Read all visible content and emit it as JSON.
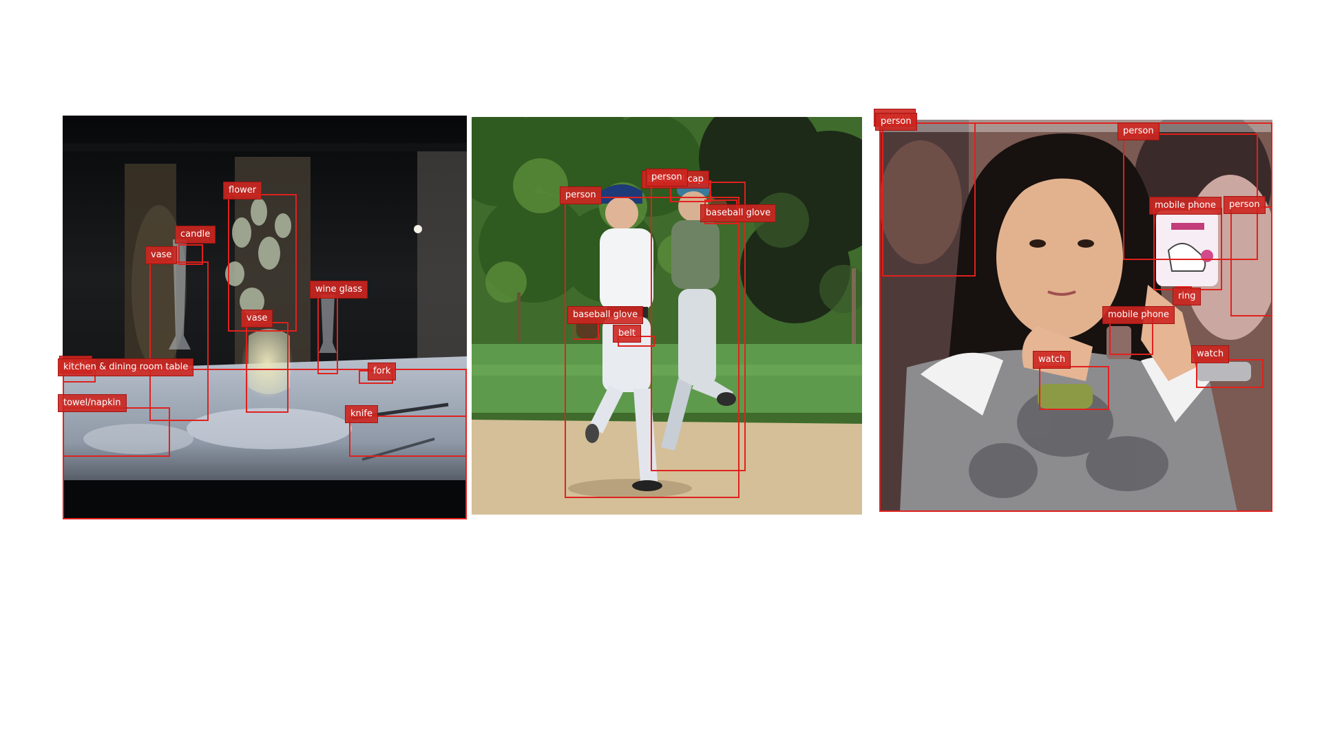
{
  "colors": {
    "box": "#e0211d",
    "tag_bg": "#cd2620",
    "tag_text": "#ffffff",
    "background": "#ffffff"
  },
  "panels": [
    {
      "scene": "restaurant-table",
      "labels": [
        "flower",
        "candle",
        "vase",
        "wine glass",
        "vase",
        "chair",
        "kitchen & dining room table",
        "fork",
        "towel/napkin",
        "knife"
      ]
    },
    {
      "scene": "baseball-field",
      "labels": [
        "person",
        "baseball cap",
        "person",
        "baseball glove",
        "baseball glove",
        "belt"
      ]
    },
    {
      "scene": "woman-with-phone",
      "labels": [
        "person",
        "person",
        "person",
        "mobile phone",
        "person",
        "ring",
        "mobile phone",
        "watch",
        "watch"
      ]
    }
  ]
}
